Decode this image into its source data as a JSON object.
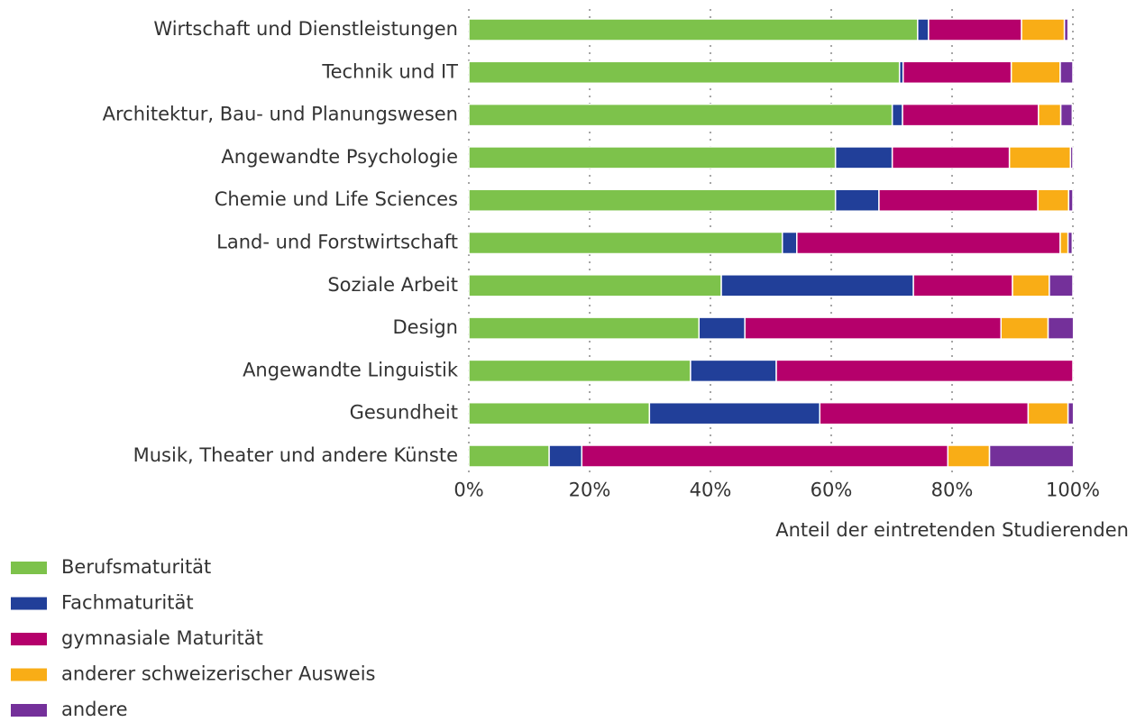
{
  "chart_data": {
    "type": "stacked-bar-horizontal",
    "categories": [
      "Wirtschaft und Dienstleistungen",
      "Technik und IT",
      "Architektur, Bau- und Planungswesen",
      "Angewandte Psychologie",
      "Chemie und Life Sciences",
      "Land- und Forstwirtschaft",
      "Soziale Arbeit",
      "Design",
      "Angewandte Linguistik",
      "Gesundheit",
      "Musik, Theater und andere Künste"
    ],
    "series": [
      {
        "name": "Berufsmaturität",
        "color": "#7dc24b",
        "values": [
          74.3,
          71.3,
          70.1,
          60.7,
          60.7,
          51.9,
          41.8,
          38.1,
          36.7,
          29.9,
          13.3
        ]
      },
      {
        "name": "Fachmaturität",
        "color": "#213f99",
        "values": [
          1.8,
          0.6,
          1.7,
          9.4,
          7.2,
          2.4,
          31.8,
          7.6,
          14.2,
          28.2,
          5.4
        ]
      },
      {
        "name": "gymnasiale Maturität",
        "color": "#b5006b",
        "values": [
          15.4,
          17.9,
          22.5,
          19.4,
          26.3,
          43.6,
          16.4,
          42.4,
          49.1,
          34.5,
          60.6
        ]
      },
      {
        "name": "anderer schweizerischer Ausweis",
        "color": "#f9ad16",
        "values": [
          7.1,
          8.1,
          3.7,
          10.1,
          5.1,
          1.3,
          6.1,
          7.8,
          0,
          6.6,
          6.9
        ]
      },
      {
        "name": "andere",
        "color": "#74309a",
        "values": [
          0.6,
          2.1,
          1.9,
          0.4,
          0.7,
          0.7,
          3.9,
          4.2,
          0,
          0.9,
          13.9
        ]
      }
    ],
    "xlim": [
      0,
      100
    ],
    "xticks": [
      {
        "value": 0,
        "label": "0%"
      },
      {
        "value": 20,
        "label": "20%"
      },
      {
        "value": 40,
        "label": "40%"
      },
      {
        "value": 60,
        "label": "60%"
      },
      {
        "value": 80,
        "label": "80%"
      },
      {
        "value": 100,
        "label": "100%"
      }
    ],
    "xlabel": "Anteil der eintretenden Studierenden",
    "grid": true,
    "legend": "bottom-left"
  }
}
